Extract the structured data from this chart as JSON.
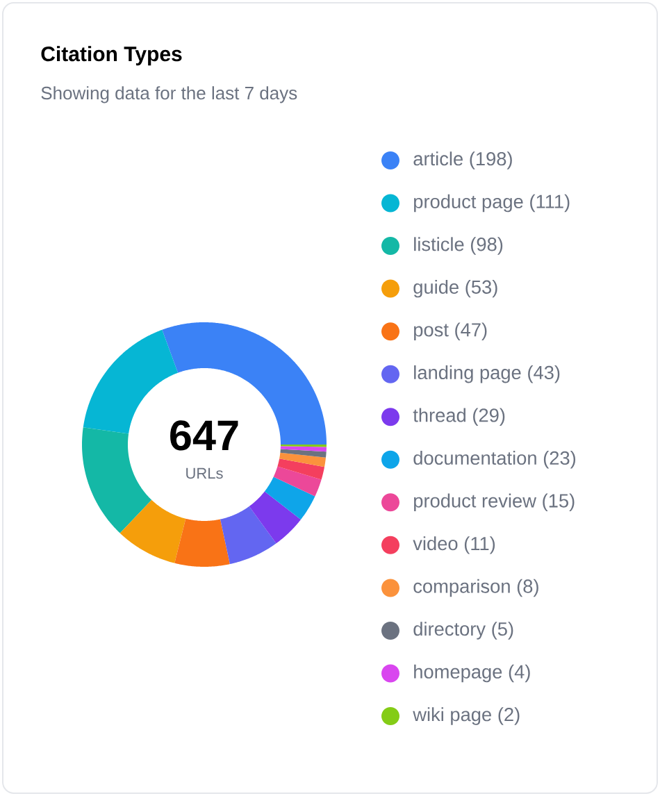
{
  "chart_data": {
    "type": "donut",
    "title": "Citation Types",
    "subtitle": "Showing data for the last 7 days",
    "categories": [
      "article",
      "product page",
      "listicle",
      "guide",
      "post",
      "landing page",
      "thread",
      "documentation",
      "product review",
      "video",
      "comparison",
      "directory",
      "homepage",
      "wiki page"
    ],
    "values": [
      198,
      111,
      98,
      53,
      47,
      43,
      29,
      23,
      15,
      11,
      8,
      5,
      4,
      2
    ],
    "value_labels": [
      "(198)",
      "(111)",
      "(98)",
      "(53)",
      "(47)",
      "(43)",
      "(29)",
      "(23)",
      "(15)",
      "(11)",
      "(8)",
      "(5)",
      "(4)",
      "(2)"
    ],
    "colors": [
      "#3b82f6",
      "#06b6d4",
      "#14b8a6",
      "#f59e0b",
      "#f97316",
      "#6366f1",
      "#7c3aed",
      "#0ea5e9",
      "#ec4899",
      "#f43f5e",
      "#fb923c",
      "#6b7280",
      "#d946ef",
      "#84cc16"
    ],
    "legend": "right",
    "annotations": [
      "647",
      "URLs"
    ]
  }
}
